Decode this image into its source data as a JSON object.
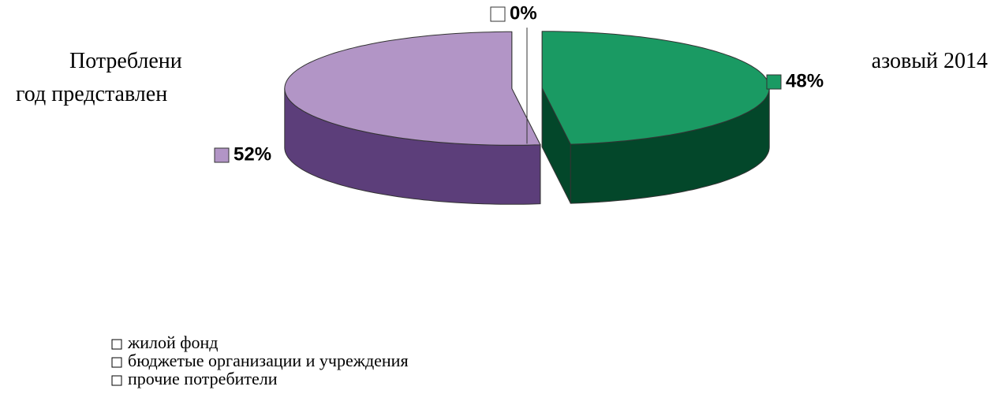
{
  "document": {
    "lines": [
      "Потреблени",
      "азовый 2014",
      "год представлен"
    ]
  },
  "chart_data": {
    "type": "pie",
    "categories": [
      "жилой фонд",
      "бюджетые организации и учреждения",
      "прочие потребители"
    ],
    "values": [
      48,
      52,
      0
    ],
    "value_labels": [
      "48%",
      "52%",
      "0%"
    ],
    "colors": [
      "#1a9a63",
      "#b295c6",
      "#ffffff"
    ],
    "side_colors": [
      "#03472a",
      "#5c3e7a",
      "#ffffff"
    ]
  }
}
